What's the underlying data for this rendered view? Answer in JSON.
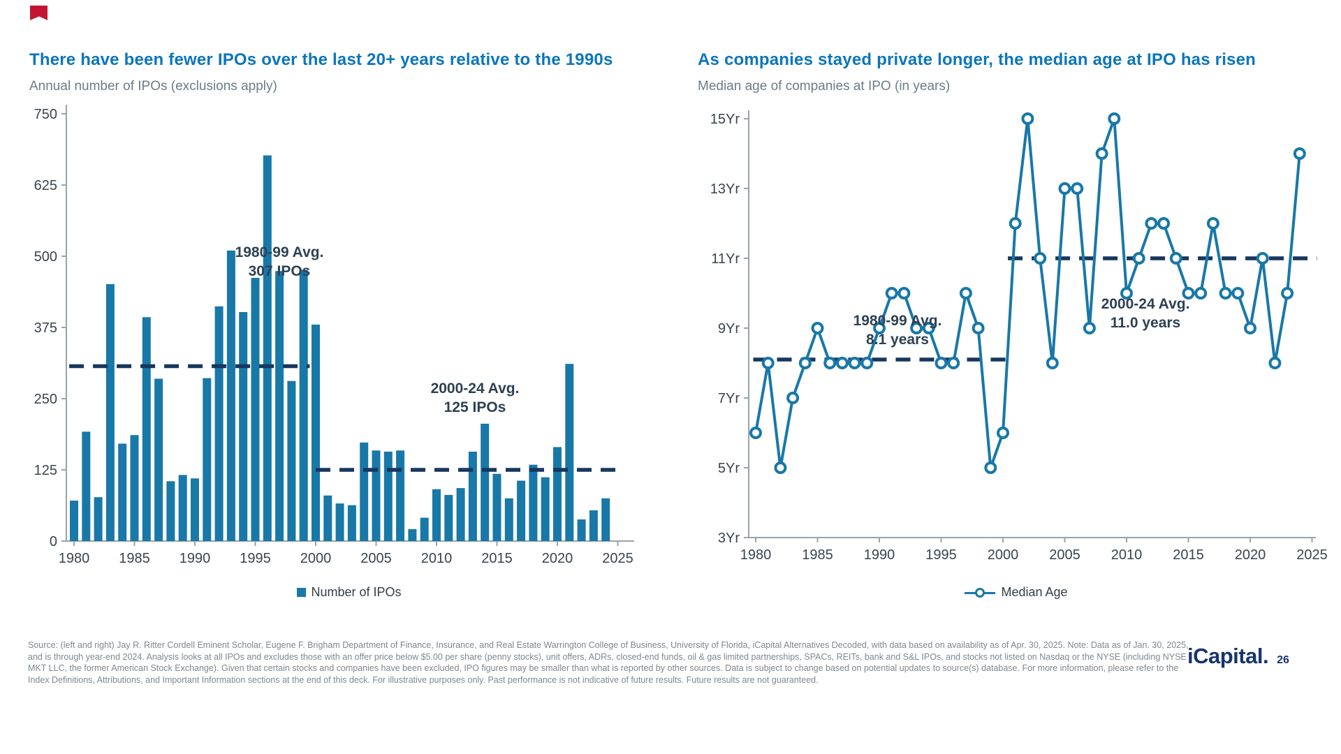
{
  "footer": {
    "lines": [
      "Source: (left and right) Jay R. Ritter Cordell Eminent Scholar, Eugene F. Brigham Department of Finance, Insurance, and Real Estate Warrington College of Business, University of Florida, iCapital Alternatives Decoded, with data based on availability as of Apr. 30, 2025. Note: Data as of Jan. 30, 2025,",
      "and is through year-end 2024. Analysis looks at all IPOs and excludes those with an offer price below $5.00 per share (penny stocks), unit offers, ADRs, closed-end funds, oil & gas limited partnerships, SPACs, REITs, bank and S&L IPOs, and stocks not listed on Nasdaq or the NYSE (including NYSE",
      "MKT LLC, the former American Stock Exchange). Given that certain stocks and companies have been excluded, IPO figures may be smaller than what is reported by other sources. Data is subject to change based on potential updates to source(s) database. For more information, please refer to the",
      "Index Definitions, Attributions, and Important Information sections at the end of this deck. For illustrative purposes only. Past performance is not indicative of future results. Future results are not guaranteed."
    ],
    "logo_text": "iCapital.",
    "page_number": "26"
  },
  "colors": {
    "accent_blue": "#1878A8",
    "dash_navy": "#17375E",
    "title_blue": "#0B76BC"
  },
  "chart_data": [
    {
      "type": "bar",
      "title": "There have been fewer IPOs over the last 20+ years relative to the 1990s",
      "subtitle": "Annual number of IPOs (exclusions apply)",
      "legend": [
        "Number of IPOs"
      ],
      "legend_position": "bottom-center",
      "color": "#1878A8",
      "avg_line_color": "#17375E",
      "grid": false,
      "ylim": [
        0,
        750
      ],
      "yticks": [
        0,
        125,
        250,
        375,
        500,
        625,
        750
      ],
      "xticks": [
        1980,
        1985,
        1990,
        1995,
        2000,
        2005,
        2010,
        2015,
        2020,
        2025
      ],
      "x": [
        1980,
        1981,
        1982,
        1983,
        1984,
        1985,
        1986,
        1987,
        1988,
        1989,
        1990,
        1991,
        1992,
        1993,
        1994,
        1995,
        1996,
        1997,
        1998,
        1999,
        2000,
        2001,
        2002,
        2003,
        2004,
        2005,
        2006,
        2007,
        2008,
        2009,
        2010,
        2011,
        2012,
        2013,
        2014,
        2015,
        2016,
        2017,
        2018,
        2019,
        2020,
        2021,
        2022,
        2023,
        2024
      ],
      "values": [
        71,
        192,
        77,
        451,
        171,
        186,
        393,
        285,
        105,
        116,
        110,
        286,
        412,
        510,
        402,
        462,
        677,
        474,
        281,
        476,
        380,
        80,
        66,
        63,
        173,
        159,
        157,
        159,
        21,
        41,
        91,
        81,
        93,
        157,
        206,
        118,
        75,
        106,
        134,
        112,
        165,
        311,
        38,
        54,
        75
      ],
      "avg_lines": [
        {
          "label": [
            "1980-99 Avg.",
            "307 IPOs"
          ],
          "value": 307,
          "from_year": 1979.6,
          "to_year": 1999.5
        },
        {
          "label": [
            "2000-24 Avg.",
            "125 IPOs"
          ],
          "value": 125,
          "from_year": 2000.0,
          "to_year": 2025.5
        }
      ]
    },
    {
      "type": "line",
      "title": "As companies stayed private longer, the median age at IPO has risen",
      "subtitle": "Median age of companies at IPO (in years)",
      "legend": [
        "Median Age"
      ],
      "legend_position": "bottom-center",
      "color": "#1878A8",
      "avg_line_color": "#17375E",
      "grid": false,
      "ylim": [
        3,
        15
      ],
      "yticks": [
        3,
        5,
        7,
        9,
        11,
        13,
        15
      ],
      "ytick_labels": [
        "3Yr",
        "5Yr",
        "7Yr",
        "9Yr",
        "11Yr",
        "13Yr",
        "15Yr"
      ],
      "xticks": [
        1980,
        1985,
        1990,
        1995,
        2000,
        2005,
        2010,
        2015,
        2020,
        2025
      ],
      "x": [
        1980,
        1981,
        1982,
        1983,
        1984,
        1985,
        1986,
        1987,
        1988,
        1989,
        1990,
        1991,
        1992,
        1993,
        1994,
        1995,
        1996,
        1997,
        1998,
        1999,
        2000,
        2001,
        2002,
        2003,
        2004,
        2005,
        2006,
        2007,
        2008,
        2009,
        2010,
        2011,
        2012,
        2013,
        2014,
        2015,
        2016,
        2017,
        2018,
        2019,
        2020,
        2021,
        2022,
        2023,
        2024
      ],
      "values": [
        6,
        8,
        5,
        7,
        8,
        9,
        8,
        8,
        8,
        8,
        9,
        10,
        10,
        9,
        9,
        8,
        8,
        10,
        9,
        5,
        6,
        12,
        15,
        11,
        8,
        13,
        13,
        9,
        14,
        15,
        10,
        11,
        12,
        12,
        11,
        10,
        10,
        12,
        10,
        10,
        9,
        11,
        8,
        10,
        14
      ],
      "avg_lines": [
        {
          "label": [
            "1980-99 Avg.",
            "8.1 years"
          ],
          "value": 8.1,
          "from_year": 1979.8,
          "to_year": 2000.4
        },
        {
          "label": [
            "2000-24 Avg.",
            "11.0 years"
          ],
          "value": 11.0,
          "from_year": 2000.4,
          "to_year": 2025.4
        }
      ]
    }
  ]
}
